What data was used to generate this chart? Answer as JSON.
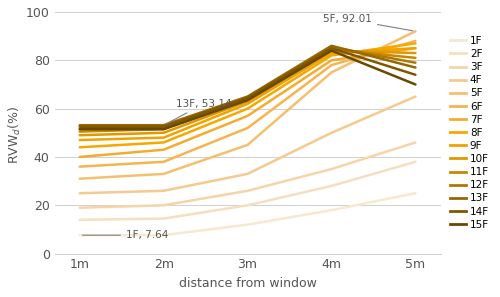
{
  "x_labels": [
    "1m",
    "2m",
    "3m",
    "4m",
    "5m"
  ],
  "x_values": [
    1,
    2,
    3,
    4,
    5
  ],
  "floors": {
    "1F": [
      7.64,
      7.64,
      12.0,
      18.0,
      25.0
    ],
    "2F": [
      14.0,
      14.5,
      20.0,
      28.0,
      38.0
    ],
    "3F": [
      19.0,
      20.0,
      26.0,
      35.0,
      46.0
    ],
    "4F": [
      25.0,
      26.0,
      33.0,
      50.0,
      65.0
    ],
    "5F": [
      31.0,
      33.0,
      45.0,
      75.0,
      92.01
    ],
    "6F": [
      36.0,
      38.0,
      52.0,
      78.0,
      88.0
    ],
    "7F": [
      40.0,
      43.0,
      57.0,
      80.0,
      85.0
    ],
    "8F": [
      44.0,
      46.0,
      60.0,
      82.0,
      87.0
    ],
    "9F": [
      47.0,
      48.0,
      62.0,
      83.0,
      85.0
    ],
    "10F": [
      49.0,
      50.0,
      63.0,
      84.0,
      83.0
    ],
    "11F": [
      50.5,
      51.5,
      64.0,
      84.5,
      81.0
    ],
    "12F": [
      51.5,
      52.5,
      64.5,
      85.5,
      79.0
    ],
    "13F": [
      53.14,
      53.14,
      65.0,
      86.0,
      77.0
    ],
    "14F": [
      52.5,
      52.5,
      64.5,
      85.0,
      74.0
    ],
    "15F": [
      51.5,
      51.5,
      63.5,
      84.0,
      70.0
    ]
  },
  "colors": {
    "1F": "#f7e8d0",
    "2F": "#f5dfc0",
    "3F": "#f5d4a8",
    "4F": "#f5ca90",
    "5F": "#f5bf70",
    "6F": "#f5b450",
    "7F": "#f5aa30",
    "8F": "#f5a800",
    "9F": "#f0a200",
    "10F": "#e09800",
    "11F": "#c88800",
    "12F": "#b07800",
    "13F": "#986800",
    "14F": "#805800",
    "15F": "#6a4800"
  },
  "xlabel": "distance from window",
  "ylim": [
    0,
    100
  ],
  "yticks": [
    0,
    20,
    40,
    60,
    80,
    100
  ]
}
